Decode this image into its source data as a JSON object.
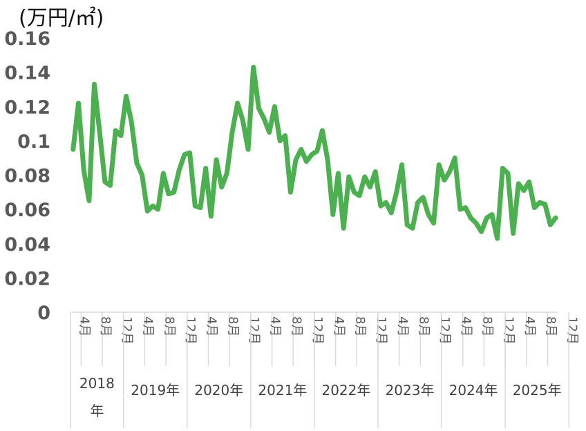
{
  "chart_data": {
    "type": "line",
    "unit_label": "(万円/㎡)",
    "ylim": [
      0,
      0.16
    ],
    "yticks": [
      "0",
      "0.02",
      "0.04",
      "0.06",
      "0.08",
      "0.1",
      "0.12",
      "0.14",
      "0.16"
    ],
    "grid": false,
    "legend": "none",
    "color": "#4CAF50",
    "month_ticks": [
      {
        "index": 3,
        "label": "4月"
      },
      {
        "index": 7,
        "label": "8月"
      },
      {
        "index": 11,
        "label": "12月"
      },
      {
        "index": 15,
        "label": "4月"
      },
      {
        "index": 19,
        "label": "8月"
      },
      {
        "index": 23,
        "label": "12月"
      },
      {
        "index": 27,
        "label": "4月"
      },
      {
        "index": 31,
        "label": "8月"
      },
      {
        "index": 35,
        "label": "12月"
      },
      {
        "index": 39,
        "label": "4月"
      },
      {
        "index": 43,
        "label": "8月"
      },
      {
        "index": 47,
        "label": "12月"
      },
      {
        "index": 51,
        "label": "4月"
      },
      {
        "index": 55,
        "label": "8月"
      },
      {
        "index": 59,
        "label": "12月"
      },
      {
        "index": 63,
        "label": "4月"
      },
      {
        "index": 67,
        "label": "8月"
      },
      {
        "index": 71,
        "label": "12月"
      },
      {
        "index": 75,
        "label": "4月"
      },
      {
        "index": 79,
        "label": "8月"
      },
      {
        "index": 83,
        "label": "12月"
      },
      {
        "index": 87,
        "label": "4月"
      },
      {
        "index": 91,
        "label": "8月"
      },
      {
        "index": 95,
        "label": "12月"
      }
    ],
    "years": [
      {
        "label": "2018\n年",
        "start": 2,
        "end": 11
      },
      {
        "label": "2019年",
        "start": 12,
        "end": 23
      },
      {
        "label": "2020年",
        "start": 24,
        "end": 35
      },
      {
        "label": "2021年",
        "start": 36,
        "end": 47
      },
      {
        "label": "2022年",
        "start": 48,
        "end": 59
      },
      {
        "label": "2023年",
        "start": 60,
        "end": 71
      },
      {
        "label": "2024年",
        "start": 72,
        "end": 83
      },
      {
        "label": "2025年",
        "start": 84,
        "end": 95
      }
    ],
    "x_start_index": 2,
    "values": [
      0.095,
      0.122,
      0.083,
      0.065,
      0.133,
      0.105,
      0.076,
      0.074,
      0.106,
      0.103,
      0.126,
      0.111,
      0.087,
      0.08,
      0.059,
      0.062,
      0.06,
      0.081,
      0.069,
      0.07,
      0.083,
      0.092,
      0.093,
      0.062,
      0.061,
      0.084,
      0.056,
      0.089,
      0.073,
      0.081,
      0.105,
      0.122,
      0.112,
      0.095,
      0.143,
      0.119,
      0.113,
      0.105,
      0.12,
      0.1,
      0.103,
      0.07,
      0.089,
      0.095,
      0.088,
      0.092,
      0.094,
      0.106,
      0.089,
      0.057,
      0.081,
      0.049,
      0.079,
      0.07,
      0.068,
      0.079,
      0.073,
      0.082,
      0.062,
      0.064,
      0.058,
      0.07,
      0.086,
      0.051,
      0.049,
      0.064,
      0.067,
      0.057,
      0.052,
      0.086,
      0.077,
      0.082,
      0.09,
      0.06,
      0.061,
      0.055,
      0.052,
      0.047,
      0.055,
      0.057,
      0.043,
      0.084,
      0.081,
      0.046,
      0.075,
      0.071,
      0.076,
      0.061,
      0.064,
      0.063,
      0.051,
      0.055
    ]
  }
}
